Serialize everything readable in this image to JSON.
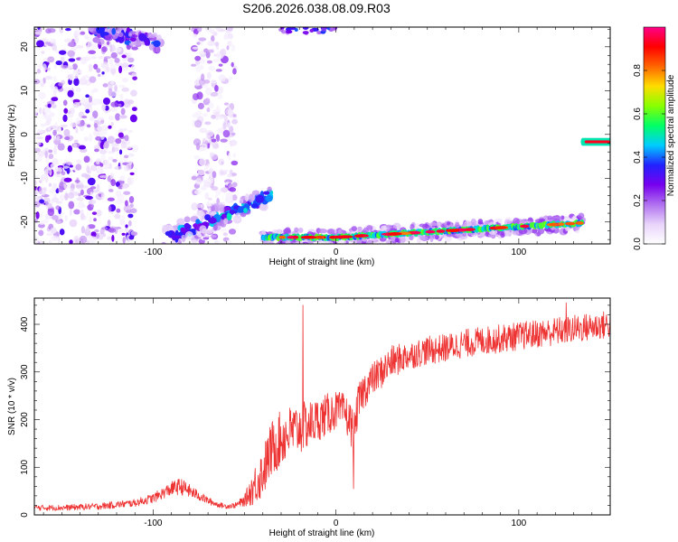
{
  "title": "S206.2026.038.08.09.R03",
  "colors": {
    "snr_line": "#ee3333",
    "frame": "#000000",
    "background": "#ffffff"
  },
  "chart_data": [
    {
      "type": "heatmap",
      "name": "spectrogram",
      "xlabel": "Height of straight line (km)",
      "ylabel": "Frequency (Hz)",
      "xlim": [
        -165,
        150
      ],
      "ylim": [
        -25,
        24.5
      ],
      "x_ticks": [
        -100,
        0,
        100
      ],
      "y_ticks": [
        -20,
        -10,
        0,
        10,
        20
      ],
      "x_tick_labels": [
        "-100",
        "0",
        "100"
      ],
      "y_tick_labels": [
        "-20",
        "-10",
        "0",
        "10",
        "20"
      ],
      "colorbar": {
        "label": "Normalized spectral amplitude",
        "range": [
          0,
          1
        ],
        "ticks": [
          0.0,
          0.2,
          0.4,
          0.6,
          0.8
        ],
        "tick_labels": [
          "0.0",
          "0.2",
          "0.4",
          "0.6",
          "0.8"
        ],
        "colormap": [
          "#ffffff",
          "#e8d4fa",
          "#b070f0",
          "#7700ee",
          "#2222ff",
          "#00ccff",
          "#00ff66",
          "#88ff00",
          "#ffdd00",
          "#ff6600",
          "#ff0000",
          "#ff0088"
        ]
      },
      "features": [
        {
          "name": "upper speckle cluster",
          "x_range": [
            -165,
            -110
          ],
          "y_range": [
            -25,
            24.5
          ],
          "amplitude": 0.2
        },
        {
          "name": "middle speckle band",
          "x_range": [
            -78,
            -55
          ],
          "y_range": [
            -25,
            24.5
          ],
          "amplitude": 0.12
        },
        {
          "name": "upper-left arc",
          "x_range": [
            -135,
            -95
          ],
          "y_range": [
            18,
            24.5
          ],
          "amplitude": 0.3
        },
        {
          "name": "top fragment",
          "x_range": [
            -30,
            0
          ],
          "y_range": [
            22.5,
            24.5
          ],
          "amplitude": 0.2
        },
        {
          "name": "rising trace",
          "x_range": [
            -95,
            -35
          ],
          "y_range": [
            -25,
            -13
          ],
          "amplitude": 0.3
        },
        {
          "name": "main horizontal trace",
          "x_range": [
            -40,
            135
          ],
          "y_range": [
            -25,
            -19.5
          ],
          "amplitude": 0.9
        },
        {
          "name": "right isolated segment",
          "x_range": [
            135,
            150
          ],
          "y_range": [
            -2,
            -1.5
          ],
          "amplitude": 0.95
        }
      ]
    },
    {
      "type": "line",
      "name": "snr",
      "xlabel": "Height of straight line (km)",
      "ylabel": "SNR (10 * v/v)",
      "xlim": [
        -165,
        150
      ],
      "ylim": [
        0,
        455
      ],
      "x_ticks": [
        -100,
        0,
        100
      ],
      "y_ticks": [
        0,
        100,
        200,
        300,
        400
      ],
      "x_tick_labels": [
        "-100",
        "0",
        "100"
      ],
      "y_tick_labels": [
        "0",
        "100",
        "200",
        "300",
        "400"
      ],
      "series": [
        {
          "name": "SNR",
          "x": [
            -165,
            -150,
            -130,
            -110,
            -100,
            -95,
            -90,
            -85,
            -80,
            -75,
            -70,
            -65,
            -60,
            -55,
            -50,
            -45,
            -40,
            -38,
            -35,
            -30,
            -25,
            -20,
            -15,
            -10,
            -5,
            0,
            5,
            8,
            10,
            12,
            15,
            20,
            25,
            30,
            40,
            50,
            60,
            70,
            80,
            90,
            100,
            110,
            120,
            130,
            140,
            150
          ],
          "values": [
            15,
            15,
            18,
            25,
            35,
            45,
            55,
            60,
            50,
            40,
            30,
            22,
            18,
            20,
            30,
            60,
            90,
            110,
            140,
            160,
            175,
            180,
            190,
            200,
            210,
            220,
            215,
            190,
            175,
            230,
            260,
            285,
            300,
            320,
            335,
            345,
            350,
            360,
            365,
            370,
            375,
            380,
            385,
            390,
            395,
            400
          ],
          "noise": [
            6,
            6,
            7,
            8,
            10,
            12,
            15,
            18,
            14,
            10,
            8,
            6,
            5,
            6,
            12,
            40,
            55,
            55,
            60,
            60,
            55,
            55,
            50,
            45,
            45,
            40,
            40,
            45,
            40,
            40,
            40,
            35,
            35,
            35,
            30,
            30,
            30,
            30,
            30,
            30,
            30,
            30,
            30,
            30,
            30,
            30
          ],
          "spikes": [
            {
              "x": -18,
              "value": 440
            },
            {
              "x": 9.5,
              "value": 55
            },
            {
              "x": 126,
              "value": 445
            }
          ]
        }
      ]
    }
  ]
}
